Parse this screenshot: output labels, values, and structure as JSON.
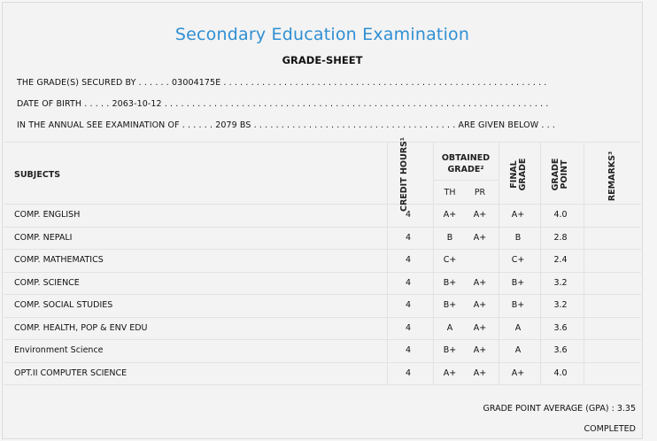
{
  "title": "Secondary Education Examination",
  "subtitle": "GRADE-SHEET",
  "info": {
    "line1": "THE GRADE(S) SECURED BY . . . . . . 03004175E . . . . . . . . . . . . . . . . . . . . . . . . . . . . . . . . . . . . . . . . . . . . . . . . . . . . . . . . . . .",
    "line2": "DATE OF BIRTH . . . . . 2063-10-12 . . . . . . . . . . . . . . . . . . . . . . . . . . . . . . . . . . . . . . . . . . . . . . . . . . . . . . . . . . . . . . . . . . . . . .",
    "line3": "IN THE ANNUAL SEE EXAMINATION OF . . . . . . 2079 BS . . . . . . . . . . . . . . . . . . . . . . . . . . . . . . . . . . . . . ARE GIVEN BELOW . . ."
  },
  "table": {
    "header": {
      "subjects": "SUBJECTS",
      "credit_hours": "CREDIT HOURS¹",
      "obtained_grade": "OBTAINED GRADE²",
      "th": "TH",
      "pr": "PR",
      "final_grade": "FINAL GRADE",
      "grade_point": "GRADE POINT",
      "remarks": "REMARKS³"
    },
    "rows": [
      {
        "subject": "COMP. ENGLISH",
        "credit": "4",
        "th": "A+",
        "pr": "A+",
        "final": "A+",
        "gp": "4.0"
      },
      {
        "subject": "COMP. NEPALI",
        "credit": "4",
        "th": "B",
        "pr": "A+",
        "final": "B",
        "gp": "2.8"
      },
      {
        "subject": "COMP. MATHEMATICS",
        "credit": "4",
        "th": "C+",
        "pr": "",
        "final": "C+",
        "gp": "2.4"
      },
      {
        "subject": "COMP. SCIENCE",
        "credit": "4",
        "th": "B+",
        "pr": "A+",
        "final": "B+",
        "gp": "3.2"
      },
      {
        "subject": "COMP. SOCIAL STUDIES",
        "credit": "4",
        "th": "B+",
        "pr": "A+",
        "final": "B+",
        "gp": "3.2"
      },
      {
        "subject": "COMP. HEALTH, POP & ENV EDU",
        "credit": "4",
        "th": "A",
        "pr": "A+",
        "final": "A",
        "gp": "3.6"
      },
      {
        "subject": "Environment Science",
        "credit": "4",
        "th": "B+",
        "pr": "A+",
        "final": "A",
        "gp": "3.6"
      },
      {
        "subject": "OPT.II COMPUTER SCIENCE",
        "credit": "4",
        "th": "A+",
        "pr": "A+",
        "final": "A+",
        "gp": "4.0"
      }
    ]
  },
  "footer": {
    "gpa": "GRADE POINT AVERAGE (GPA) : 3.35",
    "status": "COMPLETED"
  }
}
